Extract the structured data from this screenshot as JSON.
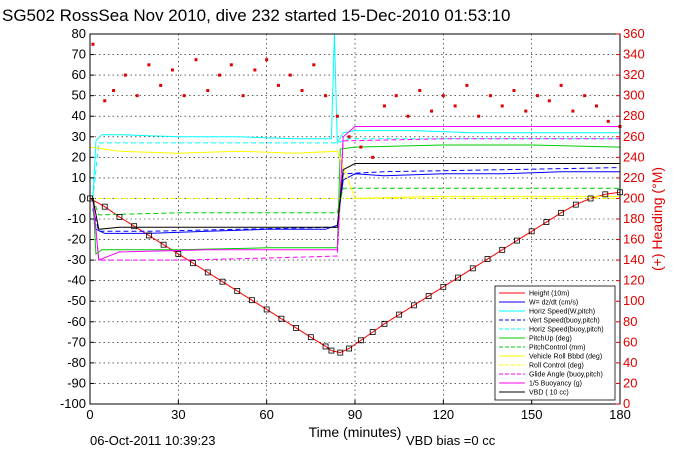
{
  "chart_data": {
    "type": "line",
    "title": "SG502 RossSea Nov 2010, dive 232 started 15-Dec-2010 01:53:10",
    "xlabel": "Time (minutes)",
    "ylabel_right": "(+) Heading (°M)",
    "xlim": [
      0,
      180
    ],
    "ylim": [
      -100,
      80
    ],
    "ylim_right": [
      0,
      360
    ],
    "x_ticks": [
      0,
      30,
      60,
      90,
      120,
      150,
      180
    ],
    "y_ticks": [
      -100,
      -90,
      -80,
      -70,
      -60,
      -50,
      -40,
      -30,
      -20,
      -10,
      0,
      10,
      20,
      30,
      40,
      50,
      60,
      70,
      80
    ],
    "y_ticks_right": [
      0,
      20,
      40,
      60,
      80,
      100,
      120,
      140,
      160,
      180,
      200,
      220,
      240,
      260,
      280,
      300,
      320,
      340,
      360
    ],
    "grid": true,
    "legend_position": "bottom-right",
    "footer_date": "06-Oct-2011 10:39:23",
    "footer_note": "VBD bias =0 cc",
    "colors": {
      "red": "#ff0000",
      "blue": "#0000ff",
      "cyan": "#00ffff",
      "green": "#00cc00",
      "yellow": "#ffff00",
      "magenta": "#ff00ff",
      "black": "#000000",
      "heading": "#e00000"
    },
    "series": [
      {
        "name": "Height (10m)",
        "color": "#ff0000",
        "style": "solid",
        "x": [
          0,
          5,
          10,
          15,
          20,
          25,
          30,
          35,
          40,
          45,
          50,
          55,
          60,
          65,
          70,
          75,
          80,
          82,
          85,
          88,
          92,
          96,
          100,
          105,
          110,
          115,
          120,
          125,
          130,
          135,
          140,
          145,
          150,
          155,
          160,
          165,
          170,
          175,
          180
        ],
        "y": [
          0,
          -4,
          -9,
          -13.5,
          -18,
          -22.5,
          -27,
          -31.5,
          -36,
          -40.5,
          -45,
          -49.5,
          -54,
          -58.5,
          -63,
          -67.5,
          -72,
          -74,
          -75,
          -73,
          -69,
          -65,
          -61,
          -56.5,
          -52,
          -47.5,
          -43,
          -38.5,
          -34,
          -29.5,
          -25,
          -20.5,
          -16,
          -11.5,
          -7,
          -3,
          0,
          2,
          3
        ]
      },
      {
        "name": "W= dz/dt (cm/s)",
        "color": "#0000ff",
        "style": "solid",
        "x": [
          1,
          2,
          5,
          20,
          40,
          60,
          80,
          84,
          86,
          90,
          100,
          120,
          140,
          160,
          180
        ],
        "y": [
          -5,
          -15,
          -17,
          -17,
          -16,
          -15,
          -15,
          -13,
          9,
          12,
          11,
          12,
          12,
          13,
          13
        ]
      },
      {
        "name": "Horiz Speed(W,pitch)",
        "color": "#00ffff",
        "style": "solid",
        "x": [
          1,
          2,
          4,
          10,
          30,
          50,
          70,
          82,
          83,
          84,
          86,
          90,
          110,
          130,
          150,
          170,
          180
        ],
        "y": [
          0,
          28,
          31,
          31,
          30,
          30,
          29,
          29,
          80,
          27,
          32,
          33,
          33,
          32,
          32,
          32,
          32
        ]
      },
      {
        "name": "Vert Speed(buoy,pitch)",
        "color": "#0000ff",
        "style": "dashed",
        "x": [
          1,
          3,
          20,
          50,
          84,
          86,
          100,
          140,
          180
        ],
        "y": [
          -5,
          -16,
          -16,
          -15,
          -14,
          12,
          13,
          14,
          15
        ]
      },
      {
        "name": "Horiz Speed(buoy,pitch)",
        "color": "#00ffff",
        "style": "dashed",
        "x": [
          1,
          3,
          30,
          60,
          84,
          88,
          120,
          150,
          180
        ],
        "y": [
          0,
          27,
          27,
          27,
          27,
          29,
          29,
          29,
          29
        ]
      },
      {
        "name": "PitchUp (deg)",
        "color": "#00cc00",
        "style": "solid",
        "x": [
          1,
          2,
          4,
          30,
          60,
          84,
          85,
          90,
          120,
          150,
          180
        ],
        "y": [
          0,
          -27,
          -25,
          -25,
          -24,
          -24,
          24,
          25,
          26,
          26,
          25
        ]
      },
      {
        "name": "PitchControl (mm)",
        "color": "#00cc00",
        "style": "dashed",
        "x": [
          1,
          3,
          30,
          60,
          84,
          86,
          120,
          150,
          180
        ],
        "y": [
          0,
          -8,
          -7,
          -7,
          -7,
          5,
          5,
          5,
          5
        ]
      },
      {
        "name": "Vehicle Roll Bbbd (deg)",
        "color": "#ffff00",
        "style": "solid",
        "x": [
          0,
          10,
          30,
          50,
          70,
          84,
          90,
          120,
          150,
          180
        ],
        "y": [
          25,
          23,
          22,
          23,
          22,
          23,
          0,
          1,
          1,
          1
        ]
      },
      {
        "name": "Roll Control (deg)",
        "color": "#ffff00",
        "style": "dashed",
        "x": [
          0,
          84,
          85,
          180
        ],
        "y": [
          0,
          0,
          0,
          0
        ]
      },
      {
        "name": "Glide Angle (buoy,pitch)",
        "color": "#ff00ff",
        "style": "dashed",
        "x": [
          1,
          3,
          30,
          60,
          84,
          86,
          120,
          150,
          180
        ],
        "y": [
          0,
          -30,
          -30,
          -29,
          -28,
          28,
          29,
          29,
          29
        ]
      },
      {
        "name": "1/5 Buoyancy (g)",
        "color": "#ff00ff",
        "style": "solid",
        "x": [
          1,
          3,
          10,
          40,
          84,
          86,
          90,
          120,
          150,
          180
        ],
        "y": [
          0,
          -30,
          -26,
          -25,
          -25,
          30,
          35,
          35,
          35,
          35
        ]
      },
      {
        "name": "VBD ( 10 cc)",
        "color": "#000000",
        "style": "solid",
        "x": [
          1,
          3,
          10,
          40,
          84,
          86,
          90,
          120,
          150,
          180
        ],
        "y": [
          0,
          -15,
          -14,
          -14,
          -14,
          14,
          17,
          17,
          17,
          17
        ]
      }
    ],
    "heading_series": {
      "axis": "right",
      "color": "#e00000",
      "x": [
        1,
        5,
        8,
        12,
        16,
        20,
        24,
        28,
        32,
        36,
        40,
        44,
        48,
        52,
        56,
        60,
        64,
        68,
        72,
        76,
        80,
        84,
        88,
        92,
        96,
        100,
        104,
        108,
        112,
        116,
        120,
        124,
        128,
        132,
        136,
        140,
        144,
        148,
        152,
        156,
        160,
        164,
        168,
        172,
        176,
        180
      ],
      "y": [
        350,
        295,
        305,
        320,
        300,
        330,
        310,
        325,
        300,
        335,
        305,
        320,
        330,
        300,
        325,
        335,
        310,
        320,
        305,
        330,
        300,
        280,
        260,
        250,
        240,
        290,
        300,
        280,
        305,
        285,
        300,
        290,
        310,
        280,
        300,
        290,
        305,
        285,
        300,
        295,
        310,
        285,
        300,
        290,
        275,
        270
      ]
    }
  }
}
